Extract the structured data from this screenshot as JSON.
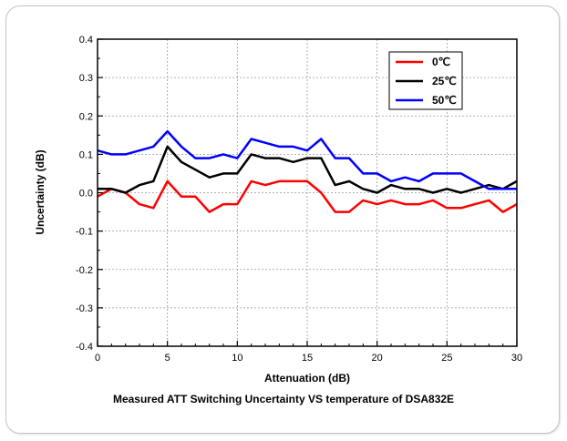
{
  "caption": "Measured ATT Switching Uncertainty VS temperature of DSA832E",
  "chart_data": {
    "type": "line",
    "title": "Measured ATT Switching Uncertainty VS temperature of DSA832E",
    "xlabel": "Attenuation (dB)",
    "ylabel": "Uncertainty (dB)",
    "xlim": [
      0,
      30
    ],
    "ylim": [
      -0.4,
      0.4
    ],
    "xticks": [
      0,
      5,
      10,
      15,
      20,
      25,
      30
    ],
    "yticks": [
      -0.4,
      -0.3,
      -0.2,
      -0.1,
      0.0,
      0.1,
      0.2,
      0.3,
      0.4
    ],
    "ytick_labels": [
      "-0.4",
      "-0.3",
      "-0.2",
      "-0.1",
      "0.0",
      "0.1",
      "0.2",
      "0.3",
      "0.4"
    ],
    "grid": true,
    "legend_position": "top-right",
    "x": [
      0,
      1,
      2,
      3,
      4,
      5,
      6,
      7,
      8,
      9,
      10,
      11,
      12,
      13,
      14,
      15,
      16,
      17,
      18,
      19,
      20,
      21,
      22,
      23,
      24,
      25,
      26,
      27,
      28,
      29,
      30
    ],
    "series": [
      {
        "name": "0℃",
        "color": "#ff0000",
        "values": [
          -0.01,
          0.01,
          0.0,
          -0.03,
          -0.04,
          0.03,
          -0.01,
          -0.01,
          -0.05,
          -0.03,
          -0.03,
          0.03,
          0.02,
          0.03,
          0.03,
          0.03,
          0.0,
          -0.05,
          -0.05,
          -0.02,
          -0.03,
          -0.02,
          -0.03,
          -0.03,
          -0.02,
          -0.04,
          -0.04,
          -0.03,
          -0.02,
          -0.05,
          -0.03
        ]
      },
      {
        "name": "25℃",
        "color": "#000000",
        "values": [
          0.01,
          0.01,
          0.0,
          0.02,
          0.03,
          0.12,
          0.08,
          0.06,
          0.04,
          0.05,
          0.05,
          0.1,
          0.09,
          0.09,
          0.08,
          0.09,
          0.09,
          0.02,
          0.03,
          0.01,
          0.0,
          0.02,
          0.01,
          0.01,
          0.0,
          0.01,
          0.0,
          0.01,
          0.02,
          0.01,
          0.03
        ]
      },
      {
        "name": "50℃",
        "color": "#0000ff",
        "values": [
          0.11,
          0.1,
          0.1,
          0.11,
          0.12,
          0.16,
          0.12,
          0.09,
          0.09,
          0.1,
          0.09,
          0.14,
          0.13,
          0.12,
          0.12,
          0.11,
          0.14,
          0.09,
          0.09,
          0.05,
          0.05,
          0.03,
          0.04,
          0.03,
          0.05,
          0.05,
          0.05,
          0.03,
          0.01,
          0.01,
          0.01
        ]
      }
    ]
  }
}
